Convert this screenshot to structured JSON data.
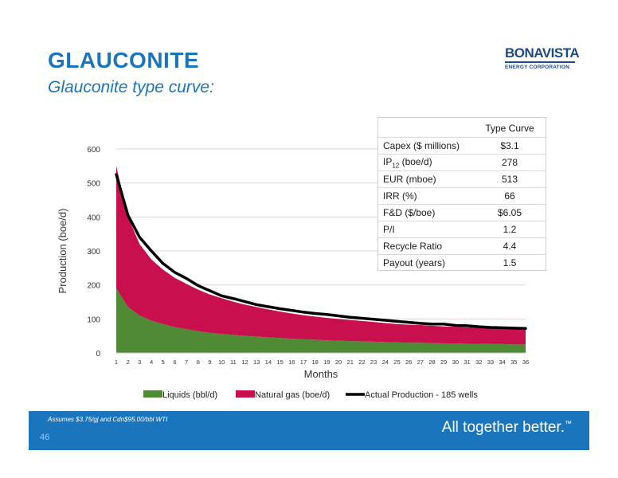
{
  "header": {
    "title": "GLAUCONITE",
    "subtitle": "Glauconite type curve:"
  },
  "logo": {
    "main": "BONAVISTA",
    "sub": "ENERGY CORPORATION"
  },
  "table": {
    "header": "Type Curve",
    "rows": [
      {
        "label": "Capex ($ millions)",
        "value": "$3.1"
      },
      {
        "label": "IP",
        "label_sub": "12",
        "label_suffix": " (boe/d)",
        "value": "278"
      },
      {
        "label": "EUR (mboe)",
        "value": "513"
      },
      {
        "label": "IRR (%)",
        "value": "66"
      },
      {
        "label": "F&D ($/boe)",
        "value": "$6.05"
      },
      {
        "label": "P/I",
        "value": "1.2"
      },
      {
        "label": "Recycle Ratio",
        "value": "4.4"
      },
      {
        "label": "Payout (years)",
        "value": "1.5"
      }
    ]
  },
  "chart_data": {
    "type": "area",
    "xlabel": "Months",
    "ylabel": "Production (boe/d)",
    "ylim": [
      0,
      600
    ],
    "yticks": [
      0,
      100,
      200,
      300,
      400,
      500,
      600
    ],
    "x": [
      1,
      2,
      3,
      4,
      5,
      6,
      7,
      8,
      9,
      10,
      11,
      12,
      13,
      14,
      15,
      16,
      17,
      18,
      19,
      20,
      21,
      22,
      23,
      24,
      25,
      26,
      27,
      28,
      29,
      30,
      31,
      32,
      33,
      34,
      35,
      36
    ],
    "grid": true,
    "legend_position": "bottom",
    "series": [
      {
        "name": "Liquids (bbl/d)",
        "kind": "area",
        "color": "#4f8a35",
        "values": [
          190,
          135,
          110,
          95,
          85,
          76,
          70,
          64,
          59,
          56,
          53,
          50,
          48,
          46,
          44,
          42,
          40,
          39,
          37,
          36,
          35,
          34,
          33,
          32,
          31,
          30,
          30,
          29,
          28,
          28,
          27,
          27,
          26,
          26,
          25,
          25
        ]
      },
      {
        "name": "Natural gas (boe/d)",
        "kind": "area",
        "color": "#c8104e",
        "values": [
          360,
          265,
          210,
          180,
          160,
          145,
          133,
          122,
          113,
          105,
          98,
          92,
          87,
          82,
          78,
          74,
          71,
          68,
          66,
          64,
          62,
          60,
          58,
          56,
          54,
          53,
          52,
          51,
          50,
          49,
          48,
          48,
          47,
          46,
          46,
          45
        ]
      },
      {
        "name": "Actual Production - 185 wells",
        "kind": "line",
        "color": "#000000",
        "values": [
          525,
          405,
          340,
          300,
          263,
          237,
          219,
          198,
          183,
          168,
          160,
          151,
          142,
          136,
          130,
          125,
          120,
          116,
          113,
          109,
          105,
          102,
          99,
          96,
          93,
          90,
          87,
          85,
          85,
          81,
          80,
          77,
          75,
          74,
          73,
          72
        ]
      }
    ]
  },
  "footer": {
    "note": "Assumes $3.75/gj and Cdn$95.00/bbl WTI",
    "page": "46",
    "tagline": "All together better.",
    "tagline_mark": "™"
  }
}
